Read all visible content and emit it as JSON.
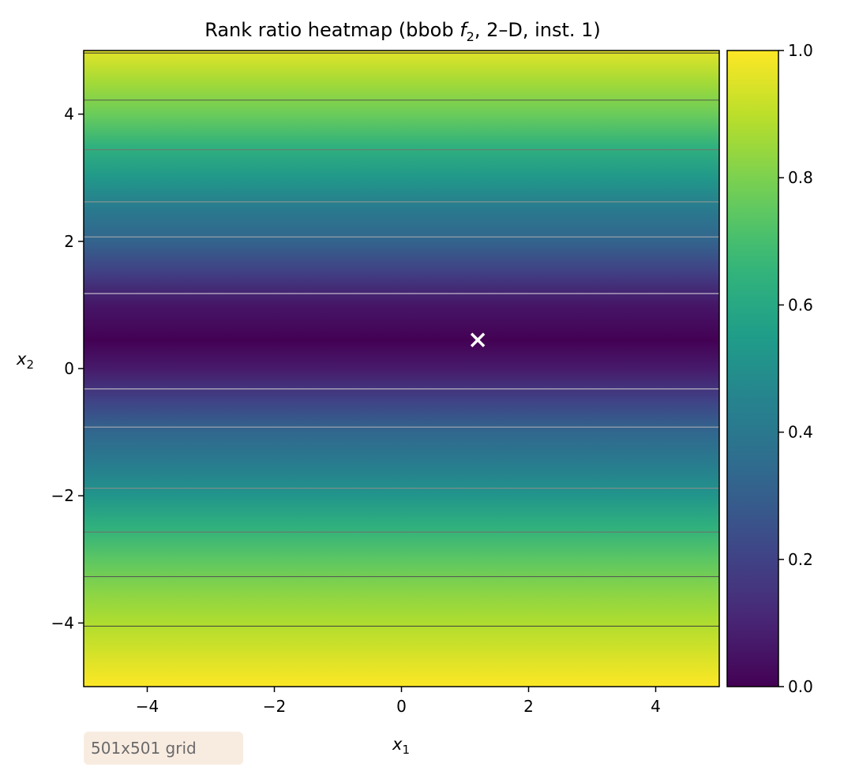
{
  "chart_data": {
    "type": "heatmap",
    "title_main": "Rank ratio heatmap (bbob ",
    "title_func": "f",
    "title_func_sub": "2",
    "title_tail": ", 2–D, inst. 1)",
    "xlabel": "x",
    "xlabel_sub": "1",
    "ylabel": "x",
    "ylabel_sub": "2",
    "xlim": [
      -5,
      5
    ],
    "ylim": [
      -5,
      5
    ],
    "x_ticks": [
      -4,
      -2,
      0,
      2,
      4
    ],
    "x_tick_labels": [
      "−4",
      "−2",
      "0",
      "2",
      "4"
    ],
    "y_ticks": [
      -4,
      -2,
      0,
      2,
      4
    ],
    "y_tick_labels": [
      "−4",
      "−2",
      "0",
      "2",
      "4"
    ],
    "colormap": "viridis",
    "colorbar": {
      "range": [
        0,
        1
      ],
      "ticks": [
        0,
        0.2,
        0.4,
        0.6,
        0.8,
        1.0
      ],
      "tick_labels": [
        "0.0",
        "0.2",
        "0.4",
        "0.6",
        "0.8",
        "1.0"
      ]
    },
    "profile": {
      "x2": [
        -5,
        -4.5,
        -4,
        -3.5,
        -3,
        -2.5,
        -2,
        -1.5,
        -1,
        -0.5,
        0,
        0.45,
        1,
        1.5,
        2,
        2.5,
        3,
        3.5,
        4,
        4.5,
        5
      ],
      "ratio": [
        1.0,
        0.94,
        0.88,
        0.82,
        0.74,
        0.64,
        0.52,
        0.42,
        0.33,
        0.2,
        0.07,
        0.0,
        0.06,
        0.19,
        0.32,
        0.41,
        0.53,
        0.64,
        0.77,
        0.86,
        0.96
      ]
    },
    "contour_x2": [
      -4.05,
      -3.27,
      -2.57,
      -1.88,
      -0.92,
      -0.32,
      1.18,
      2.07,
      2.62,
      3.44,
      4.22,
      4.96
    ],
    "optimum": {
      "x1": 1.2,
      "x2": 0.45,
      "marker": "x-cross"
    },
    "badge": "501x501 grid",
    "colors": {
      "viridis_stops": [
        "#440154",
        "#482878",
        "#3e4989",
        "#31688e",
        "#26828e",
        "#1f9e89",
        "#35b779",
        "#6ece58",
        "#b5de2b",
        "#fde725"
      ],
      "badge_bg": "#f8ece1",
      "optimum_marker": "#ffffff"
    }
  }
}
